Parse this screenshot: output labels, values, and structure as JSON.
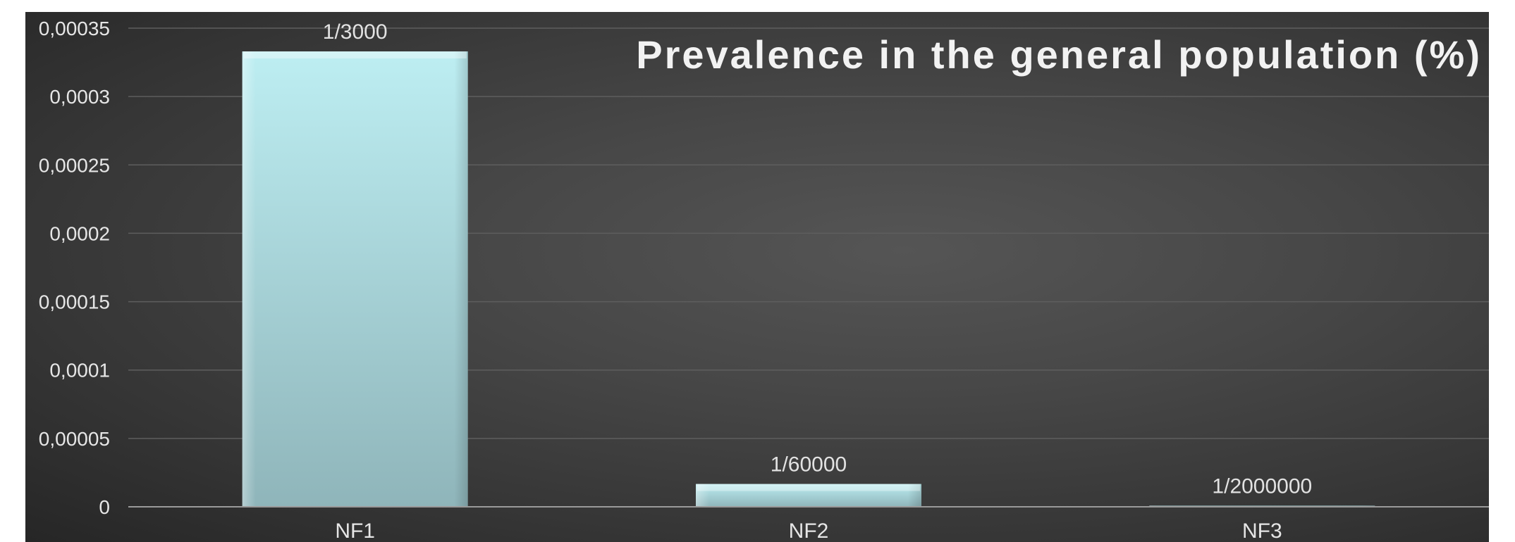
{
  "chart_data": {
    "type": "bar",
    "title": "Prevalence in the general population (%)",
    "xlabel": "",
    "ylabel": "",
    "categories": [
      "NF1",
      "NF2",
      "NF3"
    ],
    "values": [
      0.000333,
      1.67e-05,
      5e-07
    ],
    "data_labels": [
      "1/3000",
      "1/60000",
      "1/2000000"
    ],
    "ylim": [
      0,
      0.00035
    ],
    "y_ticks": [
      0,
      5e-05,
      0.0001,
      0.00015,
      0.0002,
      0.00025,
      0.0003,
      0.00035
    ],
    "y_tick_labels": [
      "0",
      "0,00005",
      "0,0001",
      "0,00015",
      "0,0002",
      "0,00025",
      "0,0003",
      "0,00035"
    ],
    "grid": true,
    "legend": "none",
    "colors": {
      "bar_top": "#bdeef2",
      "bar_bottom": "#8fb5ba",
      "gridline": "#5e5e5e",
      "axis": "#9a9a9a",
      "text": "#e6e6e6"
    }
  }
}
